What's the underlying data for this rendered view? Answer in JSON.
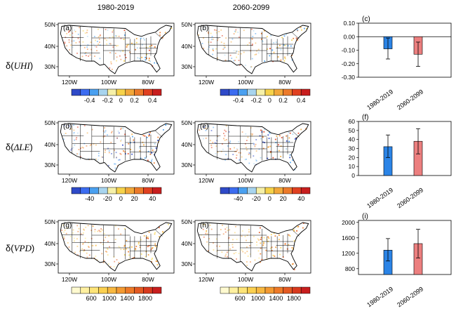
{
  "columns": [
    "1980-2019",
    "2060-2099"
  ],
  "map_panels": [
    {
      "row": 0,
      "col": 0,
      "tag": "(a)"
    },
    {
      "row": 0,
      "col": 1,
      "tag": "(b)"
    },
    {
      "row": 1,
      "col": 0,
      "tag": "(d)"
    },
    {
      "row": 1,
      "col": 1,
      "tag": "(e)"
    },
    {
      "row": 2,
      "col": 0,
      "tag": "(g)"
    },
    {
      "row": 2,
      "col": 1,
      "tag": "(h)"
    }
  ],
  "map_axes": {
    "lat_labels": [
      "50N",
      "40N",
      "30N"
    ],
    "lon_labels": [
      "120W",
      "100W",
      "80W"
    ]
  },
  "colorbars": [
    {
      "row": 0,
      "labels": [
        "-0.4",
        "-0.2",
        "0",
        "0.2",
        "0.4"
      ],
      "colors": [
        "#2f4ac8",
        "#3c6cf0",
        "#4aa0f0",
        "#a8d4ee",
        "#f6f0a8",
        "#f6d24a",
        "#f2a83a",
        "#ec7a2a",
        "#e04020",
        "#c81e1e"
      ]
    },
    {
      "row": 1,
      "labels": [
        "-40",
        "-20",
        "0",
        "20",
        "40"
      ],
      "colors": [
        "#2f4ac8",
        "#3c6cf0",
        "#4aa0f0",
        "#a8d4ee",
        "#f6f0a8",
        "#f6d24a",
        "#f2a83a",
        "#ec7a2a",
        "#e04020",
        "#c81e1e"
      ]
    },
    {
      "row": 2,
      "labels": [
        "600",
        "1000",
        "1400",
        "1800"
      ],
      "colors": [
        "#fffad0",
        "#fff0a0",
        "#fde478",
        "#fbd050",
        "#f8b840",
        "#f49a32",
        "#ee7a28",
        "#e45a22",
        "#d83a1e",
        "#c81e1e"
      ]
    }
  ],
  "row_labels": [
    {
      "pre": "δ(",
      "var": "UHI",
      "post": ")"
    },
    {
      "pre": "δ(",
      "var": "ΔLE",
      "post": ")"
    },
    {
      "pre": "δ(",
      "var": "VPD",
      "post": ")"
    }
  ],
  "colors": {
    "bar1": "#2b84e6",
    "bar2": "#ec7f7f",
    "state_line": "#000000",
    "map_outline": "#000000"
  },
  "chart_data": [
    {
      "type": "bar",
      "tag": "(c)",
      "categories": [
        "1980-2019",
        "2060-2099"
      ],
      "values": [
        -0.09,
        -0.13
      ],
      "error": [
        [
          -0.165,
          -0.01
        ],
        [
          -0.22,
          -0.04
        ]
      ],
      "ylim": [
        -0.3,
        0.1
      ],
      "yticks": [
        "0.10",
        "0.00",
        "-0.10",
        "-0.20",
        "-0.30"
      ],
      "ytick_values": [
        0.1,
        0.0,
        -0.1,
        -0.2,
        -0.3
      ],
      "zero_line": true
    },
    {
      "type": "bar",
      "tag": "(f)",
      "categories": [
        "1980-2019",
        "2060-2099"
      ],
      "values": [
        32,
        38
      ],
      "error": [
        [
          20,
          45
        ],
        [
          24,
          52
        ]
      ],
      "ylim": [
        0,
        60
      ],
      "yticks": [
        "60",
        "50",
        "40",
        "30",
        "20",
        "10",
        "0"
      ],
      "ytick_values": [
        60,
        50,
        40,
        30,
        20,
        10,
        0
      ],
      "zero_line": false
    },
    {
      "type": "bar",
      "tag": "(i)",
      "categories": [
        "1980-2019",
        "2060-2099"
      ],
      "values": [
        1280,
        1450
      ],
      "error": [
        [
          1000,
          1580
        ],
        [
          1080,
          1820
        ]
      ],
      "ylim": [
        650,
        2050
      ],
      "yticks": [
        "2000",
        "1600",
        "1200",
        "800"
      ],
      "ytick_values": [
        2000,
        1600,
        1200,
        800
      ],
      "zero_line": false
    }
  ]
}
